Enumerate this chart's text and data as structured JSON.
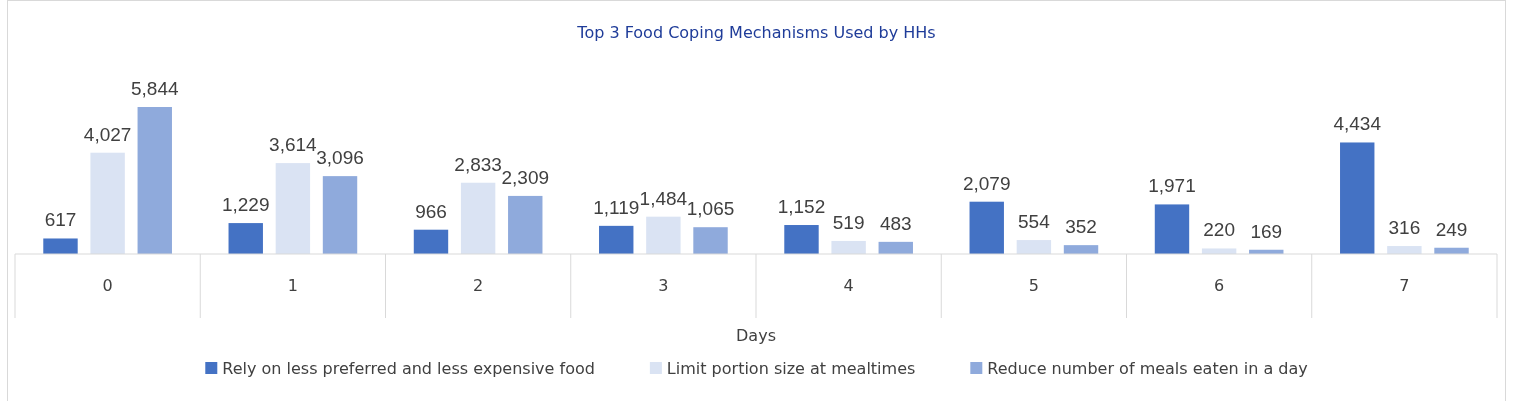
{
  "chart_data": {
    "type": "bar",
    "title": "Top 3 Food Coping Mechanisms Used by HHs",
    "xlabel": "Days",
    "categories": [
      "0",
      "1",
      "2",
      "3",
      "4",
      "5",
      "6",
      "7"
    ],
    "series": [
      {
        "name": "Rely on less preferred and less expensive food",
        "color": "#4472c4",
        "values": [
          617,
          1229,
          966,
          1119,
          1152,
          2079,
          1971,
          4434
        ],
        "value_labels": [
          "617",
          "1,229",
          "966",
          "1,119",
          "1,152",
          "2,079",
          "1,971",
          "4,434"
        ]
      },
      {
        "name": "Limit portion size at mealtimes",
        "color": "#dae3f3",
        "values": [
          4027,
          3614,
          2833,
          1484,
          519,
          554,
          220,
          316
        ],
        "value_labels": [
          "4,027",
          "3,614",
          "2,833",
          "1,484",
          "519",
          "554",
          "220",
          "316"
        ]
      },
      {
        "name": "Reduce number of meals eaten in a day",
        "color": "#8faadc",
        "values": [
          5844,
          3096,
          2309,
          1065,
          483,
          352,
          169,
          249
        ],
        "value_labels": [
          "5,844",
          "3,096",
          "2,309",
          "1,065",
          "483",
          "352",
          "169",
          "249"
        ]
      }
    ],
    "legend": "bottom",
    "grid": false
  }
}
